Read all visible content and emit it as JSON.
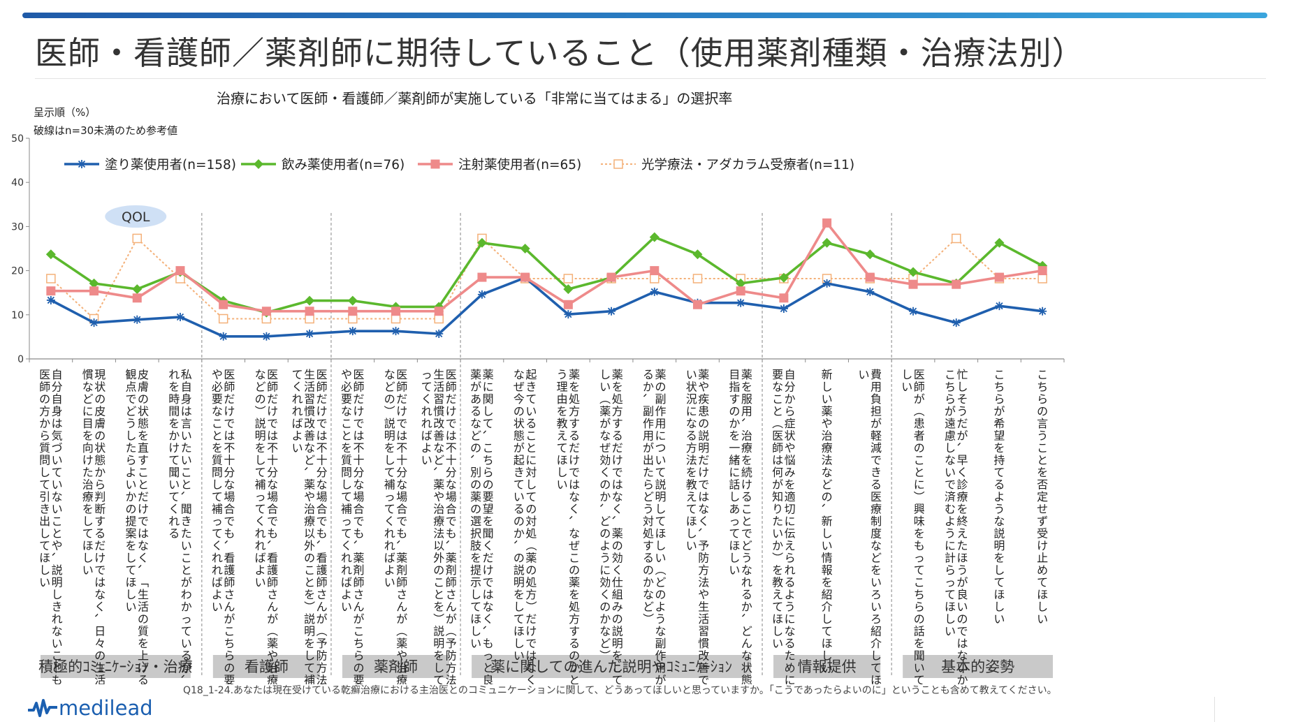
{
  "page": {
    "title": "医師・看護師／薬剤師に期待していること（使用薬剤種類・治療法別）",
    "subtitle": "治療において医師・看護師／薬剤師が実施している「非常に当てはまる」の選択率",
    "note_order": "呈示順（%）",
    "note_dashed": "破線はn=30未満のため参考値",
    "question": "Q18_1-24.あなたは現在受けている乾癬治療における主治医とのコミュニケーションに関して、どうあってほしいと思っていますか。「こうであったらよいのに」ということも含めて教えてください。",
    "logo_text": "medilead"
  },
  "chart_data": {
    "type": "line",
    "ylim": [
      0,
      50
    ],
    "yticks": [
      0,
      10,
      20,
      30,
      40,
      50
    ],
    "annotation": "QOL",
    "categories": [
      "自分自身は気づいていないことや、説明しきれないことも、医師の方から質問して引き出してほしい",
      "現状の皮膚の状態から判断するだけではなく、日々の生活習慣などに目を向けた治療をしてほしい",
      "皮膚の状態を直すことだけではなく、「生活の質を上げる」観点でどうしたらよいかの提案をしてほしい",
      "私自身は言いたいこと、聞きたいことがわかっているが、それを時間をかけて聞いてくれる",
      "医師だけでは不十分な場合でも、看護師さんがこちらの要望や必要なことを質問して補ってくれればよい",
      "医師だけでは不十分な場合でも、看護師さんが（薬や治療法などの）説明をして補ってくれればよい",
      "医師だけでは不十分な場合でも、看護師さんが（予防方法や生活習慣改善など、薬や治療以外のことを）説明をして補ってくれればよい",
      "医師だけでは不十分な場合でも、薬剤師さんがこちらの要望や必要なことを質問して補ってくれればよい",
      "医師だけでは不十分な場合でも、薬剤師さんが（薬や治療法などの）説明をして補ってくれればよい",
      "医師だけでは不十分な場合でも、薬剤師さんが（予防方法や生活習慣改善など、薬や治療法以外のことを）説明をして補ってくれればよい",
      "薬に関して、こちらの要望を聞くだけではなく、もっと良い薬があるなどの、別の薬の選択肢を提示してほしい",
      "起きていることに対しての対処（薬の処方）だけではなく、なぜ今の状態が起きているのか、の説明をしてほしい",
      "薬を処方するだけではなく、なぜこの薬を処方するのかという理由を教えてほしい",
      "薬を処方するだけではなく、薬の効く仕組みの説明をしてほしい（薬がなぜ効くのか、どのように効くのかなど）",
      "薬の副作用について説明してほしい（どのような副作用があるか、副作用が出たらどう対処するのかなど）",
      "薬や疾患の説明だけではなく、予防方法や生活習慣改善で良い状況になる方法を教えてほしい",
      "薬を服用、治療を続けることでどうなれるか、どんな状態を目指すのかを一緒に話しあってほしい",
      "自分から症状や悩みを適切に伝えられるようになるために必要なこと（医師は何が知りたいか）を教えてほしい",
      "新しい薬や治療法などの、新しい情報を紹介してほしい",
      "費用負担が軽減できる医療制度などをいろいろ紹介してほしい",
      "医師が（患者のことに）興味をもってこちらの話を聞いてほしい",
      "忙しそうだが、早く診療を終えたほうが良いのではないかとこちらが遠慮しないで済むように計らってほしい",
      "こちらが希望を持てるような説明をしてほしい",
      "こちらの言うことを否定せず受け止めてほしい"
    ],
    "series": [
      {
        "name": "塗り薬使用者(n=158)",
        "color": "#1f5fae",
        "marker": "star",
        "dashed": false,
        "values": [
          13.3,
          8.2,
          8.9,
          9.5,
          5.1,
          5.1,
          5.7,
          6.3,
          6.3,
          5.7,
          14.6,
          18.4,
          10.1,
          10.8,
          15.2,
          12.7,
          12.7,
          11.4,
          17.1,
          15.2,
          10.8,
          8.2,
          12.0,
          10.8
        ]
      },
      {
        "name": "飲み薬使用者(n=76)",
        "color": "#5bb82d",
        "marker": "diamond",
        "dashed": false,
        "values": [
          23.7,
          17.1,
          15.8,
          19.7,
          13.2,
          10.5,
          13.2,
          13.2,
          11.8,
          11.8,
          26.3,
          25.0,
          15.8,
          18.4,
          27.6,
          23.7,
          17.1,
          18.4,
          26.3,
          23.7,
          19.7,
          17.1,
          26.3,
          21.1
        ]
      },
      {
        "name": "注射薬使用者(n=65)",
        "color": "#ee8a8a",
        "marker": "square",
        "dashed": false,
        "values": [
          15.4,
          15.4,
          13.8,
          20.0,
          12.3,
          10.8,
          10.8,
          10.8,
          10.8,
          10.8,
          18.5,
          18.5,
          12.3,
          18.5,
          20.0,
          12.3,
          15.4,
          13.8,
          30.8,
          18.5,
          16.9,
          16.9,
          18.5,
          20.0
        ]
      },
      {
        "name": "光学療法・アダカラム受療者(n=11)",
        "color": "#f4b078",
        "marker": "hollow-square",
        "dashed": true,
        "values": [
          18.2,
          9.1,
          27.3,
          18.2,
          9.1,
          9.1,
          9.1,
          9.1,
          9.1,
          9.1,
          27.3,
          18.2,
          18.2,
          18.2,
          18.2,
          18.2,
          18.2,
          18.2,
          18.2,
          18.2,
          18.2,
          27.3,
          18.2,
          18.2
        ]
      }
    ],
    "groups": [
      {
        "label": "積極的ｺﾐｭﾆｹｰｼｮﾝ・治療",
        "start": 0,
        "end": 3
      },
      {
        "label": "看護師",
        "start": 4,
        "end": 6
      },
      {
        "label": "薬剤師",
        "start": 7,
        "end": 9
      },
      {
        "label": "薬に関しての進んだ説明やｺﾐｭﾆｹｰｼｮﾝ",
        "start": 10,
        "end": 16
      },
      {
        "label": "情報提供",
        "start": 17,
        "end": 19
      },
      {
        "label": "基本的姿勢",
        "start": 20,
        "end": 23
      }
    ],
    "legend_position": "top-left"
  }
}
